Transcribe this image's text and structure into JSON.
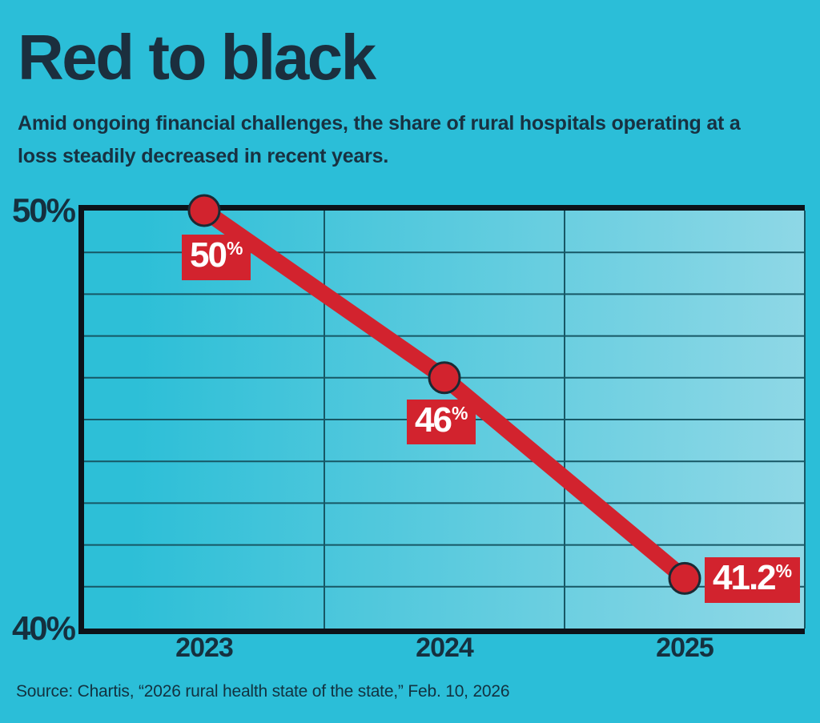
{
  "header": {
    "title": "Red to black",
    "subtitle": "Amid ongoing financial challenges, the share of rural hospitals operating at a loss steadily decreased in recent years."
  },
  "footer": {
    "source": "Source: Chartis, “2026 rural health state of the state,” Feb. 10, 2026"
  },
  "colors": {
    "background": "#2bbed8",
    "accent_red": "#d2232e",
    "ink": "#16303f",
    "axis": "#0c1219",
    "grid": "#175765",
    "point_outline": "#1a2a34",
    "value_label_text": "#ffffff",
    "plot_gradient_start": "#2dbfd7",
    "plot_gradient_end": "#90d8e6"
  },
  "chart_data": {
    "type": "line",
    "title": "Red to black",
    "categories": [
      "2023",
      "2024",
      "2025"
    ],
    "series": [
      {
        "name": "Share of rural hospitals operating at a loss",
        "values": [
          50,
          46,
          41.2
        ]
      }
    ],
    "point_labels": [
      {
        "num": "50",
        "sym": "%"
      },
      {
        "num": "46",
        "sym": "%"
      },
      {
        "num": "41.2",
        "sym": "%"
      }
    ],
    "y_ticks": [
      {
        "value": 50,
        "label": "50%"
      },
      {
        "value": 40,
        "label": "40%"
      }
    ],
    "ylim": [
      40,
      50
    ],
    "grid_step": 1,
    "grid": true,
    "legend_position": "none",
    "xlabel": "",
    "ylabel": ""
  }
}
